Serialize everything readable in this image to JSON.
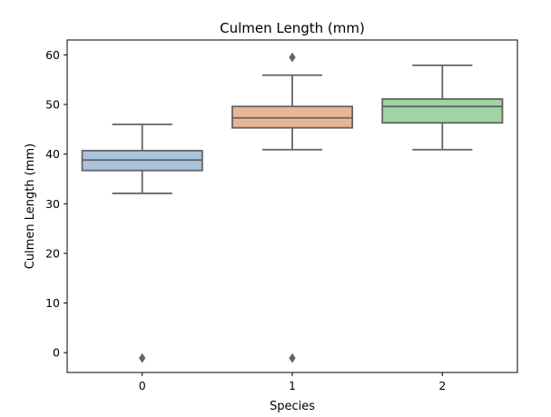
{
  "chart_data": {
    "type": "box",
    "title": "Culmen Length (mm)",
    "xlabel": "Species",
    "ylabel": "Culmen Length (mm)",
    "categories": [
      "0",
      "1",
      "2"
    ],
    "ylim": [
      -4,
      63
    ],
    "yticks": [
      0,
      10,
      20,
      30,
      40,
      50,
      60
    ],
    "grid": false,
    "boxes": [
      {
        "category": "0",
        "whisker_low": 32.1,
        "q1": 36.7,
        "median": 38.8,
        "q3": 40.7,
        "whisker_high": 46.0,
        "outliers": [
          -1.1
        ],
        "color": "#abc4dd"
      },
      {
        "category": "1",
        "whisker_low": 40.9,
        "q1": 45.3,
        "median": 47.3,
        "q3": 49.6,
        "whisker_high": 55.9,
        "outliers": [
          59.5,
          -1.1
        ],
        "color": "#e6b697"
      },
      {
        "category": "2",
        "whisker_low": 40.9,
        "q1": 46.3,
        "median": 49.6,
        "q3": 51.1,
        "whisker_high": 57.9,
        "outliers": [],
        "color": "#a1d4a4"
      }
    ],
    "line_color": "#646464"
  }
}
